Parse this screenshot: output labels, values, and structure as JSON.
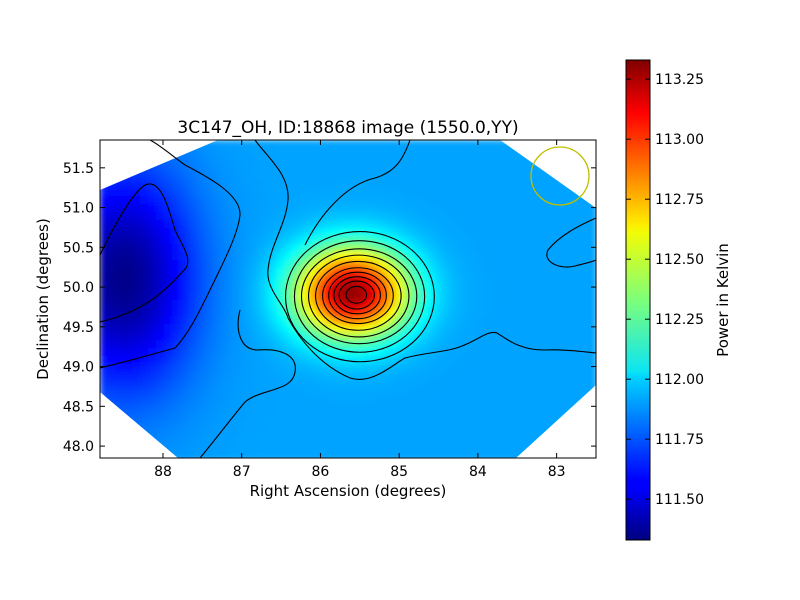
{
  "chart_data": {
    "type": "heatmap",
    "title": "3C147_OH, ID:18868 image (1550.0,YY)",
    "xlabel": "Right Ascension (degrees)",
    "ylabel": "Declination (degrees)",
    "xlim": [
      88.8,
      82.5
    ],
    "ylim": [
      47.85,
      51.85
    ],
    "x_ticks": [
      88,
      87,
      86,
      85,
      84,
      83
    ],
    "x_tick_labels": [
      "88",
      "87",
      "86",
      "85",
      "84",
      "83"
    ],
    "y_ticks": [
      48.0,
      48.5,
      49.0,
      49.5,
      50.0,
      50.5,
      51.0,
      51.5
    ],
    "y_tick_labels": [
      "48.0",
      "48.5",
      "49.0",
      "49.5",
      "50.0",
      "50.5",
      "51.0",
      "51.5"
    ],
    "colorbar": {
      "label": "Power in Kelvin",
      "range": [
        111.33,
        113.33
      ],
      "ticks": [
        111.5,
        111.75,
        112.0,
        112.25,
        112.5,
        112.75,
        113.0,
        113.25
      ],
      "tick_labels": [
        "111.50",
        "111.75",
        "112.00",
        "112.25",
        "112.50",
        "112.75",
        "113.00",
        "113.25"
      ],
      "colormap": "jet"
    },
    "peak": {
      "ra": 85.6,
      "dec": 49.93,
      "value": 113.3
    },
    "background_level": 111.9,
    "minimum": {
      "ra": 88.5,
      "dec": 50.1,
      "value": 111.35
    },
    "beam_circle": {
      "ra": 83.0,
      "dec": 51.4,
      "color": "#bfbf00"
    },
    "contour_color": "#000000",
    "grid": false
  }
}
